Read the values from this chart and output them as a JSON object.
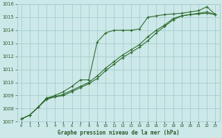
{
  "title": "Graphe pression niveau de la mer (hPa)",
  "hours": [
    0,
    1,
    2,
    3,
    4,
    5,
    6,
    7,
    8,
    9,
    10,
    11,
    12,
    13,
    14,
    15,
    16,
    17,
    18,
    19,
    20,
    21,
    22,
    23
  ],
  "series": [
    [
      1007.2,
      1007.5,
      1008.1,
      1008.8,
      1009.0,
      1009.3,
      1009.7,
      1010.2,
      1010.2,
      1013.1,
      1013.8,
      1014.0,
      1014.0,
      1014.0,
      1014.1,
      1015.0,
      1015.1,
      1015.2,
      1015.25,
      1015.3,
      1015.4,
      1015.5,
      1015.8,
      1015.2
    ],
    [
      1007.2,
      1007.5,
      1008.1,
      1008.8,
      1008.9,
      1009.0,
      1009.3,
      1009.6,
      1009.9,
      1010.3,
      1010.9,
      1011.4,
      1011.9,
      1012.3,
      1012.7,
      1013.2,
      1013.8,
      1014.3,
      1014.8,
      1015.1,
      1015.2,
      1015.25,
      1015.3,
      1015.2
    ],
    [
      1007.2,
      1007.5,
      1008.1,
      1008.7,
      1008.9,
      1009.1,
      1009.4,
      1009.7,
      1010.0,
      1010.5,
      1011.1,
      1011.6,
      1012.1,
      1012.5,
      1012.9,
      1013.5,
      1014.0,
      1014.4,
      1014.9,
      1015.1,
      1015.2,
      1015.3,
      1015.4,
      1015.2
    ]
  ],
  "line_color": "#2d6a2d",
  "marker": "+",
  "bg_color": "#cce8e8",
  "grid_color": "#9ec8c8",
  "text_color": "#2d5a2d",
  "ylim": [
    1007,
    1016
  ],
  "yticks": [
    1007,
    1008,
    1009,
    1010,
    1011,
    1012,
    1013,
    1014,
    1015,
    1016
  ],
  "figsize": [
    3.2,
    2.0
  ],
  "dpi": 100
}
